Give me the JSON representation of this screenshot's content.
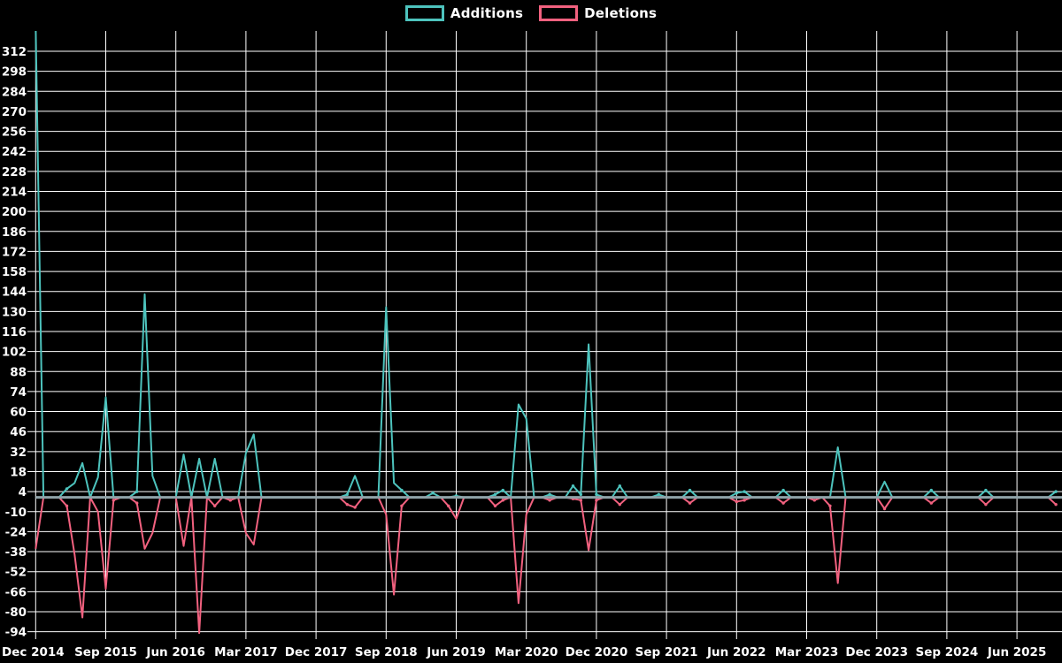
{
  "legend": {
    "additions_label": "Additions",
    "deletions_label": "Deletions"
  },
  "colors": {
    "background": "#000000",
    "grid": "#ffffff",
    "text": "#ffffff",
    "additions": "#4dc3bd",
    "deletions": "#f2617f",
    "zero_line": "#8fa2a8"
  },
  "chart_data": {
    "type": "line",
    "title": "",
    "xlabel": "",
    "ylabel": "",
    "x_start_month": "2014-12",
    "x_months_per_point": 1,
    "x_tick_labels": [
      "Dec 2014",
      "Sep 2015",
      "Jun 2016",
      "Mar 2017",
      "Dec 2017",
      "Sep 2018",
      "Jun 2019",
      "Mar 2020",
      "Dec 2020",
      "Sep 2021",
      "Jun 2022",
      "Mar 2023",
      "Dec 2023",
      "Sep 2024",
      "Jun 2025"
    ],
    "x_tick_interval_months": 9,
    "y_ticks": [
      312,
      298,
      284,
      270,
      256,
      242,
      228,
      214,
      200,
      186,
      172,
      158,
      144,
      130,
      116,
      102,
      88,
      74,
      60,
      46,
      32,
      18,
      4,
      -10,
      -24,
      -38,
      -52,
      -66,
      -80,
      -94
    ],
    "ylim": [
      -99,
      326
    ],
    "grid": true,
    "legend_position": "top-center",
    "series": [
      {
        "name": "Additions",
        "color": "#4dc3bd",
        "values": [
          330,
          0,
          0,
          0,
          6,
          10,
          24,
          0,
          14,
          70,
          0,
          0,
          0,
          4,
          142,
          15,
          0,
          0,
          0,
          30,
          0,
          27,
          0,
          27,
          0,
          0,
          0,
          31,
          44,
          0,
          0,
          0,
          0,
          0,
          0,
          0,
          0,
          0,
          0,
          0,
          2,
          15,
          0,
          0,
          0,
          133,
          10,
          5,
          0,
          0,
          0,
          3,
          0,
          0,
          1,
          0,
          0,
          0,
          0,
          2,
          5,
          0,
          65,
          55,
          0,
          0,
          2,
          0,
          0,
          8,
          2,
          107,
          2,
          0,
          0,
          8,
          0,
          0,
          0,
          0,
          2,
          0,
          0,
          0,
          5,
          0,
          0,
          0,
          0,
          0,
          3,
          4,
          0,
          0,
          0,
          0,
          5,
          0,
          0,
          0,
          0,
          0,
          0,
          35,
          0,
          0,
          0,
          0,
          0,
          11,
          0,
          0,
          0,
          0,
          0,
          5,
          0,
          0,
          0,
          0,
          0,
          0,
          5,
          0,
          0,
          0,
          0,
          0,
          0,
          0,
          0,
          4
        ]
      },
      {
        "name": "Deletions",
        "color": "#f2617f",
        "values": [
          -36,
          0,
          0,
          0,
          -6,
          -40,
          -84,
          0,
          -10,
          -64,
          -2,
          0,
          0,
          -4,
          -36,
          -25,
          0,
          0,
          0,
          -34,
          0,
          -95,
          0,
          -6,
          0,
          -2,
          0,
          -25,
          -33,
          0,
          0,
          0,
          0,
          0,
          0,
          0,
          0,
          0,
          0,
          0,
          -5,
          -7,
          0,
          0,
          0,
          -12,
          -68,
          -6,
          0,
          0,
          0,
          0,
          0,
          -6,
          -15,
          0,
          0,
          0,
          0,
          -6,
          -2,
          0,
          -74,
          -12,
          0,
          0,
          -2,
          0,
          0,
          -1,
          -2,
          -37,
          -2,
          0,
          0,
          -5,
          0,
          0,
          0,
          0,
          0,
          0,
          0,
          0,
          -4,
          0,
          0,
          0,
          0,
          0,
          -3,
          -2,
          0,
          0,
          0,
          0,
          -4,
          0,
          0,
          0,
          -2,
          0,
          -6,
          -60,
          0,
          0,
          0,
          0,
          0,
          -8,
          0,
          0,
          0,
          0,
          0,
          -4,
          0,
          0,
          0,
          0,
          0,
          0,
          -5,
          0,
          0,
          0,
          0,
          0,
          0,
          0,
          0,
          -5
        ]
      }
    ]
  }
}
